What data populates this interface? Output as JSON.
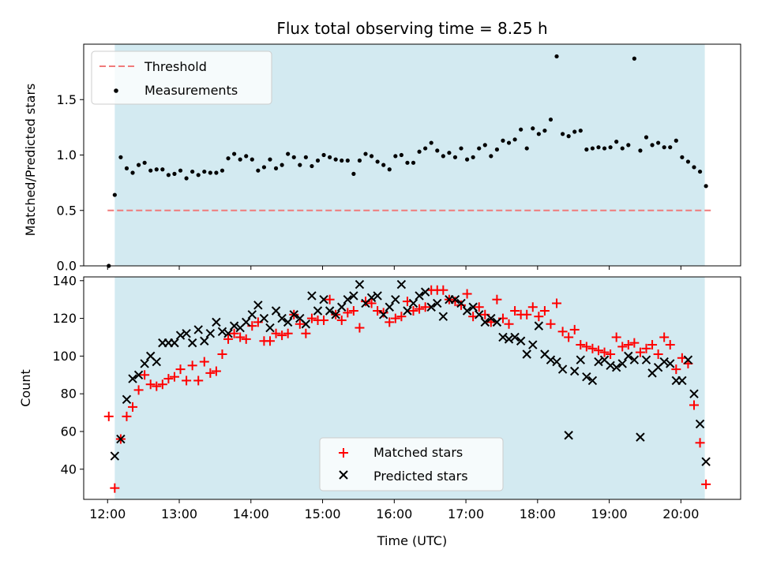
{
  "chart_data": [
    {
      "type": "scatter",
      "title": "Flux total observing time = 8.25 h",
      "xlabel": "",
      "ylabel": "Matched/Predicted stars",
      "xlim": [
        "11:40",
        "20:50"
      ],
      "ylim": [
        0,
        2.0
      ],
      "yticks": [
        "0.0",
        "0.5",
        "1.0",
        "1.5"
      ],
      "ytick_values": [
        0,
        0.5,
        1.0,
        1.5
      ],
      "shaded_span": [
        "12:06",
        "20:20"
      ],
      "shade_color": "#d3eaf1",
      "grid": false,
      "legend_position": "upper left",
      "threshold": {
        "name": "Threshold",
        "value": 0.5,
        "from": "12:00",
        "to": "20:25",
        "color": "#f07a7a",
        "style": "dashed"
      },
      "series": [
        {
          "name": "Measurements",
          "color": "#000000",
          "marker": "dot",
          "x": [
            "12:01",
            "12:06",
            "12:11",
            "12:16",
            "12:21",
            "12:26",
            "12:31",
            "12:36",
            "12:41",
            "12:46",
            "12:51",
            "12:56",
            "13:01",
            "13:06",
            "13:11",
            "13:16",
            "13:21",
            "13:26",
            "13:31",
            "13:36",
            "13:41",
            "13:46",
            "13:51",
            "13:56",
            "14:01",
            "14:06",
            "14:11",
            "14:16",
            "14:21",
            "14:26",
            "14:31",
            "14:36",
            "14:41",
            "14:46",
            "14:51",
            "14:56",
            "15:01",
            "15:06",
            "15:11",
            "15:16",
            "15:21",
            "15:26",
            "15:31",
            "15:36",
            "15:41",
            "15:46",
            "15:51",
            "15:56",
            "16:01",
            "16:06",
            "16:11",
            "16:16",
            "16:21",
            "16:26",
            "16:31",
            "16:36",
            "16:41",
            "16:46",
            "16:51",
            "16:56",
            "17:01",
            "17:06",
            "17:11",
            "17:16",
            "17:21",
            "17:26",
            "17:31",
            "17:36",
            "17:41",
            "17:46",
            "17:51",
            "17:56",
            "18:01",
            "18:06",
            "18:11",
            "18:16",
            "18:21",
            "18:26",
            "18:31",
            "18:36",
            "18:41",
            "18:46",
            "18:51",
            "18:56",
            "19:01",
            "19:06",
            "19:11",
            "19:16",
            "19:21",
            "19:26",
            "19:31",
            "19:36",
            "19:41",
            "19:46",
            "19:51",
            "19:56",
            "20:01",
            "20:06",
            "20:11",
            "20:16",
            "20:21"
          ],
          "y": [
            0.0,
            0.64,
            0.98,
            0.88,
            0.84,
            0.91,
            0.93,
            0.86,
            0.87,
            0.87,
            0.82,
            0.83,
            0.86,
            0.79,
            0.85,
            0.82,
            0.85,
            0.84,
            0.84,
            0.86,
            0.97,
            1.01,
            0.96,
            0.99,
            0.96,
            0.86,
            0.89,
            0.96,
            0.88,
            0.91,
            1.01,
            0.98,
            0.91,
            0.98,
            0.9,
            0.95,
            1.0,
            0.98,
            0.96,
            0.95,
            0.95,
            0.83,
            0.95,
            1.01,
            0.99,
            0.94,
            0.91,
            0.87,
            0.99,
            1.0,
            0.93,
            0.93,
            1.03,
            1.06,
            1.11,
            1.04,
            0.99,
            1.02,
            0.98,
            1.06,
            0.96,
            0.98,
            1.06,
            1.09,
            0.99,
            1.05,
            1.13,
            1.11,
            1.14,
            1.23,
            1.06,
            1.24,
            1.19,
            1.22,
            1.32,
            1.89,
            1.19,
            1.17,
            1.21,
            1.22,
            1.05,
            1.06,
            1.07,
            1.06,
            1.07,
            1.12,
            1.06,
            1.09,
            1.87,
            1.04,
            1.16,
            1.09,
            1.11,
            1.07,
            1.07,
            1.13,
            0.98,
            0.94,
            0.89,
            0.85,
            0.72
          ]
        }
      ]
    },
    {
      "type": "scatter",
      "title": "",
      "xlabel": "Time (UTC)",
      "ylabel": "Count",
      "xlim": [
        "11:40",
        "20:50"
      ],
      "ylim": [
        24,
        142
      ],
      "xticks": [
        "12:00",
        "13:00",
        "14:00",
        "15:00",
        "16:00",
        "17:00",
        "18:00",
        "19:00",
        "20:00"
      ],
      "yticks": [
        "40",
        "60",
        "80",
        "100",
        "120",
        "140"
      ],
      "ytick_values": [
        40,
        60,
        80,
        100,
        120,
        140
      ],
      "shaded_span": [
        "12:06",
        "20:20"
      ],
      "shade_color": "#d3eaf1",
      "grid": false,
      "legend_position": "lower center",
      "series": [
        {
          "name": "Matched stars",
          "color": "#ff0000",
          "marker": "plus",
          "x": [
            "12:01",
            "12:06",
            "12:11",
            "12:16",
            "12:21",
            "12:26",
            "12:31",
            "12:36",
            "12:41",
            "12:46",
            "12:51",
            "12:56",
            "13:01",
            "13:06",
            "13:11",
            "13:16",
            "13:21",
            "13:26",
            "13:31",
            "13:36",
            "13:41",
            "13:46",
            "13:51",
            "13:56",
            "14:01",
            "14:06",
            "14:11",
            "14:16",
            "14:21",
            "14:26",
            "14:31",
            "14:36",
            "14:41",
            "14:46",
            "14:51",
            "14:56",
            "15:01",
            "15:06",
            "15:11",
            "15:16",
            "15:21",
            "15:26",
            "15:31",
            "15:36",
            "15:41",
            "15:46",
            "15:51",
            "15:56",
            "16:01",
            "16:06",
            "16:11",
            "16:16",
            "16:21",
            "16:26",
            "16:31",
            "16:36",
            "16:41",
            "16:46",
            "16:51",
            "16:56",
            "17:01",
            "17:06",
            "17:11",
            "17:16",
            "17:21",
            "17:26",
            "17:31",
            "17:36",
            "17:41",
            "17:46",
            "17:51",
            "17:56",
            "18:01",
            "18:06",
            "18:11",
            "18:16",
            "18:21",
            "18:26",
            "18:31",
            "18:36",
            "18:41",
            "18:46",
            "18:51",
            "18:56",
            "19:01",
            "19:06",
            "19:11",
            "19:16",
            "19:21",
            "19:26",
            "19:31",
            "19:36",
            "19:41",
            "19:46",
            "19:51",
            "19:56",
            "20:01",
            "20:06",
            "20:11",
            "20:16",
            "20:21"
          ],
          "y": [
            68,
            30,
            56,
            68,
            73,
            82,
            90,
            85,
            84,
            85,
            88,
            89,
            93,
            87,
            95,
            87,
            97,
            91,
            92,
            101,
            109,
            112,
            110,
            109,
            116,
            118,
            108,
            108,
            112,
            111,
            112,
            122,
            117,
            112,
            120,
            119,
            119,
            130,
            122,
            119,
            123,
            124,
            115,
            129,
            128,
            124,
            123,
            118,
            120,
            121,
            129,
            124,
            125,
            126,
            135,
            135,
            135,
            130,
            129,
            127,
            133,
            121,
            126,
            122,
            118,
            130,
            120,
            117,
            124,
            122,
            122,
            126,
            121,
            124,
            117,
            128,
            113,
            110,
            114,
            106,
            105,
            104,
            103,
            102,
            101,
            110,
            105,
            106,
            107,
            102,
            104,
            106,
            101,
            110,
            106,
            93,
            99,
            96,
            74,
            54,
            32
          ]
        },
        {
          "name": "Predicted stars",
          "color": "#000000",
          "marker": "x",
          "x": [
            "12:06",
            "12:11",
            "12:16",
            "12:21",
            "12:26",
            "12:31",
            "12:36",
            "12:41",
            "12:46",
            "12:51",
            "12:56",
            "13:01",
            "13:06",
            "13:11",
            "13:16",
            "13:21",
            "13:26",
            "13:31",
            "13:36",
            "13:41",
            "13:46",
            "13:51",
            "13:56",
            "14:01",
            "14:06",
            "14:11",
            "14:16",
            "14:21",
            "14:26",
            "14:31",
            "14:36",
            "14:41",
            "14:46",
            "14:51",
            "14:56",
            "15:01",
            "15:06",
            "15:11",
            "15:16",
            "15:21",
            "15:26",
            "15:31",
            "15:36",
            "15:41",
            "15:46",
            "15:51",
            "15:56",
            "16:01",
            "16:06",
            "16:11",
            "16:16",
            "16:21",
            "16:26",
            "16:31",
            "16:36",
            "16:41",
            "16:46",
            "16:51",
            "16:56",
            "17:01",
            "17:06",
            "17:11",
            "17:16",
            "17:21",
            "17:26",
            "17:31",
            "17:36",
            "17:41",
            "17:46",
            "17:51",
            "17:56",
            "18:01",
            "18:06",
            "18:11",
            "18:16",
            "18:21",
            "18:26",
            "18:31",
            "18:36",
            "18:41",
            "18:46",
            "18:51",
            "18:56",
            "19:01",
            "19:06",
            "19:11",
            "19:16",
            "19:21",
            "19:26",
            "19:31",
            "19:36",
            "19:41",
            "19:46",
            "19:51",
            "19:56",
            "20:01",
            "20:06",
            "20:11",
            "20:16",
            "20:21"
          ],
          "y": [
            47,
            56,
            77,
            88,
            90,
            96,
            100,
            97,
            107,
            107,
            107,
            111,
            112,
            107,
            114,
            108,
            112,
            118,
            113,
            112,
            116,
            115,
            118,
            122,
            127,
            120,
            115,
            124,
            120,
            118,
            122,
            120,
            117,
            132,
            124,
            130,
            124,
            122,
            126,
            130,
            132,
            138,
            128,
            131,
            132,
            122,
            126,
            130,
            138,
            124,
            128,
            132,
            134,
            126,
            128,
            121,
            130,
            130,
            128,
            124,
            126,
            122,
            118,
            120,
            118,
            110,
            109,
            110,
            108,
            101,
            106,
            116,
            101,
            98,
            97,
            93,
            58,
            92,
            98,
            89,
            87,
            97,
            98,
            95,
            94,
            96,
            100,
            98,
            57,
            98,
            91,
            94,
            97,
            96,
            87,
            87,
            98,
            80,
            64,
            44
          ]
        }
      ]
    }
  ]
}
